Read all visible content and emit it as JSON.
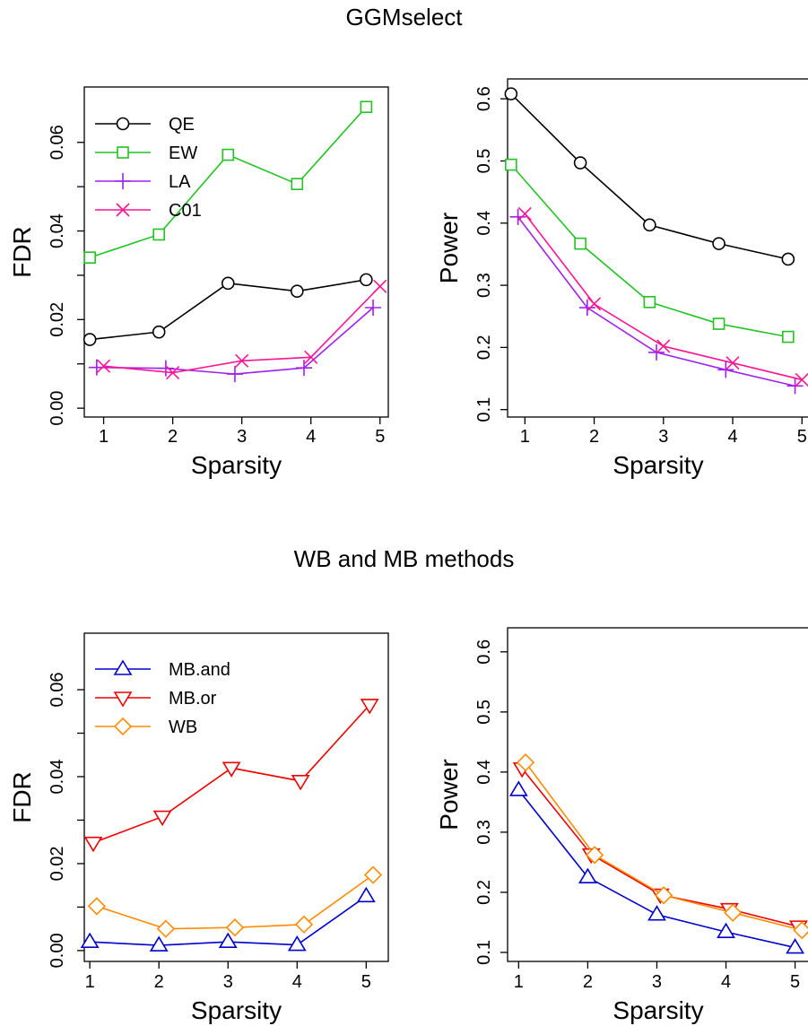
{
  "titles": {
    "top": "GGMselect",
    "bottom": "WB and MB methods"
  },
  "chart_data": [
    {
      "type": "line",
      "xlabel": "Sparsity",
      "ylabel": "FDR",
      "x_ticks": [
        1,
        2,
        3,
        4,
        5
      ],
      "y_ticks": [
        "0.00",
        "0.02",
        "0.04",
        "0.06"
      ],
      "ylim": [
        0,
        0.07
      ],
      "legend": "top-left",
      "series": [
        {
          "name": "QE",
          "color": "#000000",
          "marker": "circle",
          "x": [
            0.8,
            1.8,
            2.8,
            3.8,
            4.8
          ],
          "values": [
            0.0155,
            0.0172,
            0.0282,
            0.0264,
            0.029
          ]
        },
        {
          "name": "EW",
          "color": "#22c322",
          "marker": "square",
          "x": [
            0.8,
            1.8,
            2.8,
            3.8,
            4.8
          ],
          "values": [
            0.034,
            0.0392,
            0.0572,
            0.0506,
            0.068
          ]
        },
        {
          "name": "LA",
          "color": "#a020f0",
          "marker": "plus",
          "x": [
            0.9,
            1.9,
            2.9,
            3.9,
            4.9
          ],
          "values": [
            0.0092,
            0.009,
            0.0077,
            0.0091,
            0.0227
          ]
        },
        {
          "name": "C01",
          "color": "#ff1493",
          "marker": "cross",
          "x": [
            1.0,
            2.0,
            3.0,
            4.0,
            5.0
          ],
          "values": [
            0.0095,
            0.008,
            0.0107,
            0.0115,
            0.0275
          ]
        }
      ]
    },
    {
      "type": "line",
      "xlabel": "Sparsity",
      "ylabel": "Power",
      "x_ticks": [
        1,
        2,
        3,
        4,
        5
      ],
      "y_ticks": [
        "0.1",
        "0.2",
        "0.3",
        "0.4",
        "0.5",
        "0.6"
      ],
      "ylim": [
        0.1,
        0.62
      ],
      "series": [
        {
          "name": "QE",
          "color": "#000000",
          "marker": "circle",
          "x": [
            0.8,
            1.8,
            2.8,
            3.8,
            4.8
          ],
          "values": [
            0.608,
            0.497,
            0.397,
            0.367,
            0.342
          ]
        },
        {
          "name": "EW",
          "color": "#22c322",
          "marker": "square",
          "x": [
            0.8,
            1.8,
            2.8,
            3.8,
            4.8
          ],
          "values": [
            0.494,
            0.367,
            0.273,
            0.238,
            0.217
          ]
        },
        {
          "name": "LA",
          "color": "#a020f0",
          "marker": "plus",
          "x": [
            0.9,
            1.9,
            2.9,
            3.9,
            4.9
          ],
          "values": [
            0.41,
            0.264,
            0.192,
            0.164,
            0.138
          ]
        },
        {
          "name": "C01",
          "color": "#ff1493",
          "marker": "cross",
          "x": [
            1.0,
            2.0,
            3.0,
            4.0,
            5.0
          ],
          "values": [
            0.415,
            0.27,
            0.202,
            0.175,
            0.148
          ]
        }
      ]
    },
    {
      "type": "line",
      "xlabel": "Sparsity",
      "ylabel": "FDR",
      "x_ticks": [
        1,
        2,
        3,
        4,
        5
      ],
      "y_ticks": [
        "0.00",
        "0.02",
        "0.04",
        "0.06"
      ],
      "ylim": [
        0,
        0.07
      ],
      "legend": "top-left",
      "series": [
        {
          "name": "MB.and",
          "color": "#0000cd",
          "marker": "triangle-up",
          "x": [
            1.0,
            2.0,
            3.0,
            4.0,
            5.0
          ],
          "values": [
            0.002,
            0.0012,
            0.002,
            0.0013,
            0.0125
          ]
        },
        {
          "name": "MB.or",
          "color": "#ee0000",
          "marker": "triangle-down",
          "x": [
            1.05,
            2.05,
            3.05,
            4.05,
            5.05
          ],
          "values": [
            0.0248,
            0.0308,
            0.042,
            0.039,
            0.0565
          ]
        },
        {
          "name": "WB",
          "color": "#ff8c00",
          "marker": "diamond",
          "x": [
            1.1,
            2.1,
            3.1,
            4.1,
            5.1
          ],
          "values": [
            0.0102,
            0.005,
            0.0053,
            0.006,
            0.0174
          ]
        }
      ]
    },
    {
      "type": "line",
      "xlabel": "Sparsity",
      "ylabel": "Power",
      "x_ticks": [
        1,
        2,
        3,
        4,
        5
      ],
      "y_ticks": [
        "0.1",
        "0.2",
        "0.3",
        "0.4",
        "0.5",
        "0.6"
      ],
      "ylim": [
        0.1,
        0.62
      ],
      "series": [
        {
          "name": "MB.and",
          "color": "#0000cd",
          "marker": "triangle-up",
          "x": [
            1.0,
            2.0,
            3.0,
            4.0,
            5.0
          ],
          "values": [
            0.37,
            0.225,
            0.163,
            0.134,
            0.108
          ]
        },
        {
          "name": "MB.or",
          "color": "#ee0000",
          "marker": "triangle-down",
          "x": [
            1.05,
            2.05,
            3.05,
            4.05,
            5.05
          ],
          "values": [
            0.406,
            0.263,
            0.196,
            0.172,
            0.143
          ]
        },
        {
          "name": "WB",
          "color": "#ff8c00",
          "marker": "diamond",
          "x": [
            1.1,
            2.1,
            3.1,
            4.1,
            5.1
          ],
          "values": [
            0.416,
            0.262,
            0.195,
            0.166,
            0.137
          ]
        }
      ]
    }
  ]
}
